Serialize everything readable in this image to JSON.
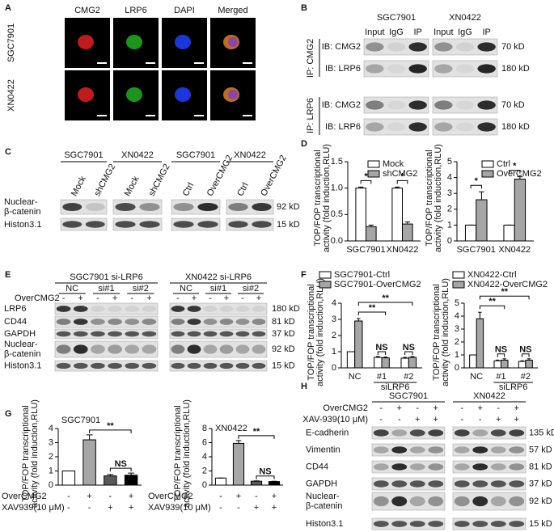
{
  "panel_labels": [
    "A",
    "B",
    "C",
    "D",
    "E",
    "F",
    "G",
    "H"
  ],
  "panel_a": {
    "columns": [
      "CMG2",
      "LRP6",
      "DAPI",
      "Merged"
    ],
    "rows": [
      "SGC7901",
      "XN0422"
    ]
  },
  "panel_b": {
    "groups": [
      {
        "name": "SGC7901",
        "lanes": [
          "Input",
          "IgG",
          "IP"
        ]
      },
      {
        "name": "XN0422",
        "lanes": [
          "Input",
          "IgG",
          "IP"
        ]
      }
    ],
    "ip_labels": [
      "IP: CMG2",
      "IP: LRP6"
    ],
    "rows": [
      {
        "label": "IB: CMG2",
        "size": "70 kD"
      },
      {
        "label": "IB: LRP6",
        "size": "180 kD"
      },
      {
        "label": "IB: CMG2",
        "size": "70 kD"
      },
      {
        "label": "IB: LRP6",
        "size": "180 kD"
      }
    ]
  },
  "panel_c": {
    "groups": [
      {
        "name": "SGC7901",
        "lanes": [
          "Mock",
          "shCMG2"
        ]
      },
      {
        "name": "XN0422",
        "lanes": [
          "Mock",
          "shCMG2"
        ]
      },
      {
        "name": "SGC7901",
        "lanes": [
          "Ctrl",
          "OverCMG2"
        ]
      },
      {
        "name": "XN0422",
        "lanes": [
          "Ctrl",
          "OverCMG2"
        ]
      }
    ],
    "rows": [
      {
        "label": [
          "Nuclear-",
          "β-catenin"
        ],
        "size": "92 kD"
      },
      {
        "label": "Histon3.1",
        "size": "15 kD"
      }
    ]
  },
  "panel_e": {
    "treatment": "OverCMG2",
    "groups": [
      {
        "name": "SGC7901 si-LRP6",
        "lanes": [
          "NC",
          "si#1",
          "si#2"
        ],
        "signs": [
          "-",
          "+",
          "-",
          "+",
          "-",
          "+"
        ]
      },
      {
        "name": "XN0422 si-LRP6",
        "lanes": [
          "NC",
          "si#1",
          "si#2"
        ],
        "signs": [
          "-",
          "+",
          "-",
          "+",
          "-",
          "+"
        ]
      }
    ],
    "rows": [
      {
        "label": "LRP6",
        "size": "180 kD"
      },
      {
        "label": "CD44",
        "size": "81 kD"
      },
      {
        "label": "GAPDH",
        "size": "37 kD"
      },
      {
        "label": [
          "Nuclear-",
          "β-catenin"
        ],
        "size": "92 kD"
      },
      {
        "label": "Histon3.1",
        "size": "15 kD"
      }
    ]
  },
  "panel_h": {
    "treatments": [
      "OverCMG2",
      "XAV-939(10 μM)"
    ],
    "groups": [
      {
        "name": "SGC7901",
        "signs": [
          [
            "-",
            "+",
            "-",
            "+"
          ],
          [
            "-",
            "-",
            "+",
            "+"
          ]
        ]
      },
      {
        "name": "XN0422",
        "signs": [
          [
            "-",
            "+",
            "-",
            "+"
          ],
          [
            "-",
            "-",
            "+",
            "+"
          ]
        ]
      }
    ],
    "rows": [
      {
        "label": "E-cadherin",
        "size": "135 kD"
      },
      {
        "label": "Vimentin",
        "size": "57 kD"
      },
      {
        "label": "CD44",
        "size": "81 kD"
      },
      {
        "label": "GAPDH",
        "size": "37 kD"
      },
      {
        "label": [
          "Nuclear-",
          "β-catenin"
        ],
        "size": "92 kD"
      },
      {
        "label": "Histon3.1",
        "size": "15 kD"
      }
    ]
  },
  "chart_data": [
    {
      "type": "bar",
      "y_label": [
        "TOP/FOP transcriptional",
        "activity (fold induction,RLU)"
      ],
      "categories": [
        "SGC7901",
        "XN0422"
      ],
      "series": [
        {
          "name": "Mock",
          "color": "#ffffff",
          "values": [
            1.0,
            1.0
          ],
          "errors": [
            0.02,
            0.02
          ]
        },
        {
          "name": "shCMG2",
          "color": "#a6a6a6",
          "values": [
            0.27,
            0.32
          ],
          "errors": [
            0.03,
            0.04
          ]
        }
      ],
      "ylim": [
        0,
        1.5
      ],
      "yticks": [
        {
          "value": 0,
          "label": "0.0"
        },
        0.5,
        {
          "value": 1,
          "label": "1.0"
        },
        1.5
      ],
      "annotations": [
        "*",
        "*"
      ]
    },
    {
      "type": "bar",
      "y_label": [
        "TOP/FOP transcriptional",
        "activity (fold induction,RLU)"
      ],
      "categories": [
        "SGC7901",
        "XN0422"
      ],
      "series": [
        {
          "name": "Ctrl",
          "color": "#ffffff",
          "values": [
            1.0,
            1.0
          ],
          "errors": [
            0,
            0
          ]
        },
        {
          "name": "OverCMG2",
          "color": "#a6a6a6",
          "values": [
            2.6,
            3.9
          ],
          "errors": [
            0.5,
            0.15
          ]
        }
      ],
      "ylim": [
        0,
        5
      ],
      "yticks": [
        0,
        1,
        2,
        3,
        4,
        5
      ],
      "annotations": [
        "*",
        "*"
      ]
    },
    {
      "type": "bar",
      "y_label": [
        "TOP/FOP transcriptional",
        "activity (fold induction,RLU)"
      ],
      "categories": [
        "NC",
        "#1",
        "#2"
      ],
      "x_label": "siLRP6",
      "series": [
        {
          "name": "SGC7901-Ctrl",
          "color": "#ffffff",
          "values": [
            1.0,
            0.65,
            0.6
          ],
          "errors": [
            0,
            0.05,
            0.05
          ]
        },
        {
          "name": "SGC7901-OverCMG2",
          "color": "#a6a6a6",
          "values": [
            2.9,
            0.62,
            0.65
          ],
          "errors": [
            0.15,
            0.05,
            0.05
          ]
        }
      ],
      "ylim": [
        0,
        4
      ],
      "yticks": [
        0,
        1,
        2,
        3,
        4
      ],
      "annotations": [
        "**",
        "**",
        "NS",
        "NS"
      ]
    },
    {
      "type": "bar",
      "y_label": [
        "TOP/FOP transcriptional",
        "activity (fold induction,RLU)"
      ],
      "categories": [
        "NC",
        "#1",
        "#2"
      ],
      "x_label": "siLRP6",
      "series": [
        {
          "name": "XN0422-Ctrl",
          "color": "#ffffff",
          "values": [
            1.0,
            0.55,
            0.5
          ],
          "errors": [
            0,
            0.05,
            0.05
          ]
        },
        {
          "name": "XN0422-OverCMG2",
          "color": "#a6a6a6",
          "values": [
            3.8,
            0.6,
            0.6
          ],
          "errors": [
            0.5,
            0.1,
            0.1
          ]
        }
      ],
      "ylim": [
        0,
        5
      ],
      "yticks": [
        0,
        1,
        2,
        3,
        4,
        5
      ],
      "annotations": [
        "**",
        "**",
        "NS",
        "NS"
      ]
    },
    {
      "type": "bar",
      "title": "SGC7901",
      "y_label": [
        "TOP/FOP transcriptional",
        "activity (fold induction,RLU)"
      ],
      "values": [
        1.0,
        3.2,
        0.65,
        0.7
      ],
      "errors": [
        0,
        0.35,
        0.1,
        0.15
      ],
      "colors": [
        "#ffffff",
        "#a6a6a6",
        "#595959",
        "#000000"
      ],
      "conditions": [
        {
          "name": "OverCMG2",
          "signs": [
            "-",
            "+",
            "-",
            "+"
          ]
        },
        {
          "name": "XAV939(10 μM)",
          "signs": [
            "-",
            "-",
            "+",
            "+"
          ]
        }
      ],
      "ylim": [
        0,
        4
      ],
      "yticks": [
        0,
        1,
        2,
        3,
        4
      ],
      "annotations": [
        "**",
        "NS"
      ]
    },
    {
      "type": "bar",
      "title": "XN0422",
      "y_label": [
        "TOP/FOP transcriptional",
        "activity (fold induction,RLU)"
      ],
      "values": [
        1.0,
        5.9,
        0.55,
        0.5
      ],
      "errors": [
        0,
        0.4,
        0.05,
        0.05
      ],
      "colors": [
        "#ffffff",
        "#a6a6a6",
        "#595959",
        "#000000"
      ],
      "conditions": [
        {
          "name": "OverCMG2",
          "signs": [
            "-",
            "+",
            "-",
            "+"
          ]
        },
        {
          "name": "XAV939(10 μM)",
          "signs": [
            "-",
            "-",
            "+",
            "+"
          ]
        }
      ],
      "ylim": [
        0,
        8
      ],
      "yticks": [
        0,
        2,
        4,
        6,
        8
      ],
      "annotations": [
        "**",
        "NS"
      ]
    }
  ]
}
